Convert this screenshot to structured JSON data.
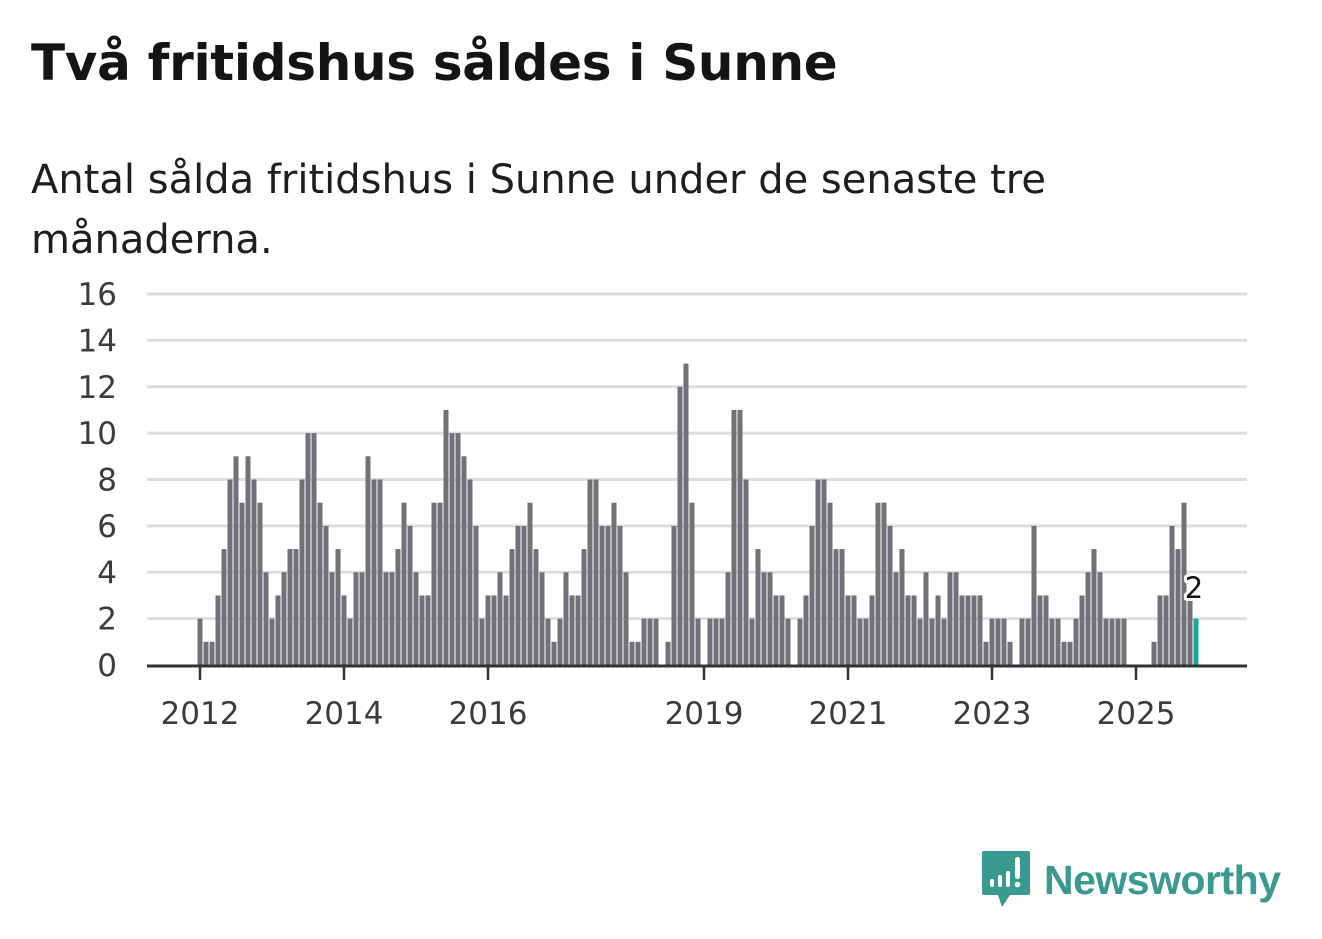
{
  "title": "Två fritidshus såldes i Sunne",
  "subtitle": "Antal sålda fritidshus i Sunne under de senaste tre månaderna.",
  "brand": {
    "name": "Newsworthy",
    "color": "#3a9a90"
  },
  "colors": {
    "bar": "#727177",
    "highlight": "#1aa39a",
    "grid": "#dddddd",
    "axis": "#333333"
  },
  "chart_data": {
    "type": "bar",
    "title": "Två fritidshus såldes i Sunne",
    "subtitle": "Antal sålda fritidshus i Sunne under de senaste tre månaderna.",
    "xlabel": "",
    "ylabel": "",
    "ylim": [
      0,
      16
    ],
    "y_ticks": [
      "0",
      "2",
      "4",
      "6",
      "8",
      "10",
      "12",
      "14",
      "16"
    ],
    "x_ticks": [
      {
        "label": "2012",
        "index": 0
      },
      {
        "label": "2014",
        "index": 24
      },
      {
        "label": "2016",
        "index": 48
      },
      {
        "label": "2019",
        "index": 84
      },
      {
        "label": "2021",
        "index": 108
      },
      {
        "label": "2023",
        "index": 132
      },
      {
        "label": "2025",
        "index": 156
      }
    ],
    "start": "2012-01",
    "frequency": "monthly",
    "grid": true,
    "values": [
      2,
      1,
      1,
      3,
      5,
      8,
      9,
      7,
      9,
      8,
      7,
      4,
      2,
      3,
      4,
      5,
      5,
      8,
      10,
      10,
      7,
      6,
      4,
      5,
      3,
      2,
      4,
      4,
      9,
      8,
      8,
      4,
      4,
      5,
      7,
      6,
      4,
      3,
      3,
      7,
      7,
      11,
      10,
      10,
      9,
      8,
      6,
      2,
      3,
      3,
      4,
      3,
      5,
      6,
      6,
      7,
      5,
      4,
      2,
      1,
      2,
      4,
      3,
      3,
      5,
      8,
      8,
      6,
      6,
      7,
      6,
      4,
      1,
      1,
      2,
      2,
      2,
      0,
      1,
      6,
      12,
      13,
      7,
      2,
      0,
      2,
      2,
      2,
      4,
      11,
      11,
      8,
      2,
      5,
      4,
      4,
      3,
      3,
      2,
      0,
      2,
      3,
      6,
      8,
      8,
      7,
      5,
      5,
      3,
      3,
      2,
      2,
      3,
      7,
      7,
      6,
      4,
      5,
      3,
      3,
      2,
      4,
      2,
      3,
      2,
      4,
      4,
      3,
      3,
      3,
      3,
      1,
      2,
      2,
      2,
      1,
      0,
      2,
      2,
      6,
      3,
      3,
      2,
      2,
      1,
      1,
      2,
      3,
      4,
      5,
      4,
      2,
      2,
      2,
      2,
      0,
      0,
      0,
      0,
      1,
      3,
      3,
      6,
      5,
      7,
      3,
      2
    ],
    "highlight_index": 166,
    "annotation": {
      "label": "2",
      "index": 166
    }
  }
}
